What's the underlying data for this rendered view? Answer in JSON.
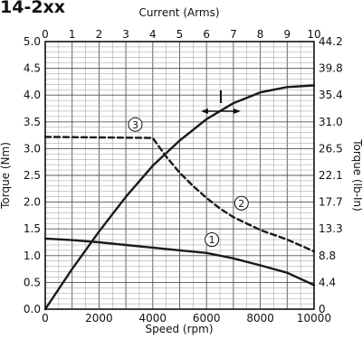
{
  "title": "14-2xx",
  "chart_data": {
    "type": "line",
    "xlabel": "Speed (rpm)",
    "ylabel": "Torque (Nm)",
    "y2label": "Torque (lb-In)",
    "x2label": "Current (Arms)",
    "xlim": [
      0,
      10000
    ],
    "ylim": [
      0,
      5.0
    ],
    "x2lim": [
      0,
      10
    ],
    "x_ticks": [
      "0",
      "2000",
      "4000",
      "6000",
      "8000",
      "10000"
    ],
    "y_ticks": [
      "0.0",
      "0.5",
      "1.0",
      "1.5",
      "2.0",
      "2.5",
      "3.0",
      "3.5",
      "4.0",
      "4.5",
      "5.0"
    ],
    "y2_ticks": [
      "0",
      "4.4",
      "8.8",
      "13.3",
      "17.7",
      "22.1",
      "26.5",
      "31.0",
      "35.4",
      "39.8",
      "44.2"
    ],
    "x2_ticks": [
      "0",
      "1",
      "2",
      "3",
      "4",
      "5",
      "6",
      "7",
      "8",
      "9",
      "10"
    ],
    "grid": true,
    "series": [
      {
        "name": "1",
        "label": "①",
        "style": "solid",
        "x_axis": "speed",
        "points": [
          [
            0,
            1.32
          ],
          [
            1000,
            1.29
          ],
          [
            2000,
            1.25
          ],
          [
            3000,
            1.2
          ],
          [
            4000,
            1.15
          ],
          [
            5000,
            1.1
          ],
          [
            6000,
            1.05
          ],
          [
            6500,
            1.0
          ],
          [
            7000,
            0.95
          ],
          [
            8000,
            0.82
          ],
          [
            9000,
            0.68
          ],
          [
            10000,
            0.45
          ]
        ]
      },
      {
        "name": "2",
        "label": "②",
        "style": "dashed",
        "x_axis": "speed",
        "points": [
          [
            0,
            3.22
          ],
          [
            4000,
            3.2
          ],
          [
            4500,
            2.85
          ],
          [
            5000,
            2.55
          ],
          [
            5500,
            2.3
          ],
          [
            6000,
            2.08
          ],
          [
            6500,
            1.88
          ],
          [
            7000,
            1.72
          ],
          [
            8000,
            1.48
          ],
          [
            9000,
            1.3
          ],
          [
            10000,
            1.08
          ]
        ]
      },
      {
        "name": "3",
        "label": "③",
        "style": "solid",
        "x_axis": "current",
        "points": [
          [
            0,
            0.0
          ],
          [
            1,
            0.75
          ],
          [
            2,
            1.45
          ],
          [
            3,
            2.1
          ],
          [
            4,
            2.68
          ],
          [
            5,
            3.15
          ],
          [
            6,
            3.55
          ],
          [
            7,
            3.85
          ],
          [
            8,
            4.05
          ],
          [
            9,
            4.15
          ],
          [
            10,
            4.18
          ]
        ]
      }
    ],
    "markers": [
      {
        "label": "①",
        "x": 6200,
        "y": 1.3
      },
      {
        "label": "②",
        "x": 7300,
        "y": 1.98
      },
      {
        "label": "③",
        "x": 3350,
        "y": 3.45
      }
    ]
  }
}
